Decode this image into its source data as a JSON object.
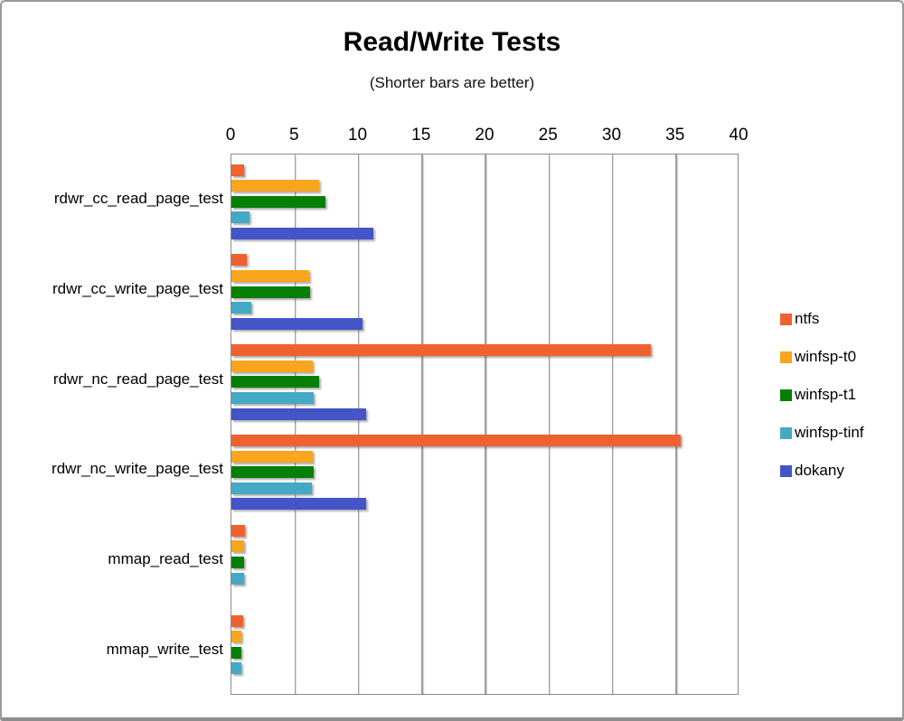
{
  "chart_data": {
    "type": "bar",
    "orientation": "horizontal",
    "title": "Read/Write Tests",
    "subtitle": "(Shorter bars are better)",
    "categories": [
      "rdwr_cc_read_page_test",
      "rdwr_cc_write_page_test",
      "rdwr_nc_read_page_test",
      "rdwr_nc_write_page_test",
      "mmap_read_test",
      "mmap_write_test"
    ],
    "series": [
      {
        "name": "ntfs",
        "color": "#EF6230",
        "values": [
          1.0,
          1.2,
          33.0,
          35.4,
          1.1,
          0.9
        ]
      },
      {
        "name": "winfsp-t0",
        "color": "#F9A51D",
        "values": [
          6.9,
          6.1,
          6.4,
          6.4,
          1.0,
          0.8
        ]
      },
      {
        "name": "winfsp-t1",
        "color": "#067F06",
        "values": [
          7.4,
          6.2,
          6.9,
          6.5,
          1.0,
          0.8
        ]
      },
      {
        "name": "winfsp-tinf",
        "color": "#44A9C4",
        "values": [
          1.4,
          1.6,
          6.5,
          6.3,
          1.0,
          0.8
        ]
      },
      {
        "name": "dokany",
        "color": "#4455C8",
        "values": [
          11.2,
          10.3,
          10.6,
          10.6,
          0,
          0
        ]
      }
    ],
    "value_axis": {
      "position": "top",
      "min": 0,
      "max": 40,
      "tick_step": 5,
      "ticks": [
        0,
        5,
        10,
        15,
        20,
        25,
        30,
        35,
        40
      ]
    },
    "grid": true,
    "legend_position": "right",
    "colors": {
      "gridline": "#9e9e9e",
      "plot_border": "#8c8c8c",
      "background": "#ffffff"
    }
  }
}
